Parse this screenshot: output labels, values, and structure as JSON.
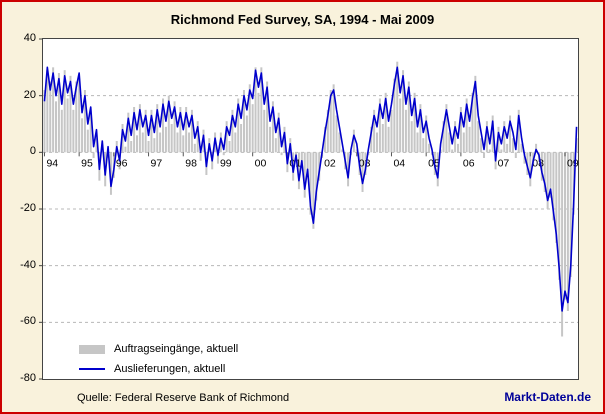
{
  "source": "Quelle: Federal Reserve Bank of Richmond",
  "brand": "Markt-Daten.de",
  "colors": {
    "frame_border": "#cc0000",
    "background": "#f9f2dc",
    "plot_background": "#ffffff",
    "gridline": "#b8b8b8",
    "bar_color": "#c6c6c6",
    "line_color": "#0000cc",
    "brand_color": "#000099"
  },
  "legend": [
    {
      "label": "Auftragseingänge, aktuell",
      "type": "bar",
      "color": "#c6c6c6"
    },
    {
      "label": "Auslieferungen, aktuell",
      "type": "line",
      "color": "#0000cc"
    }
  ],
  "chart_data": {
    "type": "bar",
    "title": "Richmond Fed Survey, SA, 1994 - Mai 2009",
    "xlabel": "",
    "ylabel": "",
    "ylim": [
      -80,
      40
    ],
    "yticks": [
      40,
      20,
      0,
      -20,
      -40,
      -60,
      -80
    ],
    "xtick_labels": [
      "94",
      "95",
      "96",
      "97",
      "98",
      "99",
      "00",
      "01",
      "02",
      "03",
      "04",
      "05",
      "06",
      "07",
      "08",
      "09"
    ],
    "x_start": "1994-01",
    "x_end": "2009-05",
    "grid": "dashed horizontal",
    "legend_position": "bottom-left inside plot",
    "series": [
      {
        "name": "Auftragseingänge, aktuell",
        "type": "bar",
        "color": "#c6c6c6",
        "values": [
          22,
          29,
          25,
          30,
          18,
          28,
          15,
          29,
          19,
          27,
          15,
          25,
          26,
          12,
          22,
          8,
          14,
          -2,
          6,
          -10,
          2,
          -12,
          -2,
          -15,
          -9,
          4,
          -6,
          10,
          2,
          14,
          4,
          16,
          6,
          17,
          7,
          15,
          4,
          15,
          5,
          17,
          7,
          19,
          9,
          20,
          10,
          18,
          7,
          16,
          6,
          16,
          7,
          15,
          3,
          11,
          -3,
          8,
          -8,
          5,
          -6,
          7,
          -4,
          7,
          -1,
          11,
          4,
          15,
          7,
          19,
          10,
          22,
          13,
          24,
          17,
          30,
          21,
          30,
          15,
          25,
          9,
          18,
          5,
          14,
          -1,
          9,
          -7,
          5,
          -10,
          -3,
          -13,
          -5,
          -16,
          -8,
          -22,
          -27,
          -17,
          -10,
          -2,
          9,
          15,
          22,
          24,
          13,
          7,
          1,
          -6,
          -12,
          -1,
          8,
          1,
          -8,
          -14,
          -8,
          -1,
          9,
          15,
          7,
          19,
          10,
          21,
          9,
          15,
          26,
          32,
          19,
          29,
          15,
          25,
          11,
          21,
          7,
          17,
          5,
          13,
          3,
          -1,
          -8,
          -12,
          1,
          11,
          17,
          7,
          1,
          11,
          3,
          16,
          7,
          19,
          9,
          21,
          27,
          11,
          5,
          -2,
          11,
          1,
          13,
          -6,
          9,
          1,
          11,
          3,
          13,
          5,
          -2,
          15,
          3,
          -4,
          -8,
          -12,
          -5,
          3,
          -3,
          -10,
          -14,
          -20,
          -16,
          -24,
          -32,
          -45,
          -65,
          -52,
          -56,
          -44,
          -22,
          5
        ]
      },
      {
        "name": "Auslieferungen, aktuell",
        "type": "line",
        "color": "#0000cc",
        "values": [
          18,
          30,
          22,
          28,
          20,
          26,
          17,
          27,
          21,
          25,
          17,
          23,
          28,
          14,
          20,
          10,
          16,
          2,
          8,
          -6,
          4,
          -8,
          2,
          -12,
          -6,
          2,
          -3,
          8,
          4,
          12,
          6,
          14,
          8,
          15,
          9,
          13,
          6,
          13,
          7,
          15,
          9,
          17,
          11,
          18,
          12,
          16,
          9,
          14,
          8,
          14,
          9,
          13,
          5,
          9,
          0,
          6,
          -5,
          3,
          -3,
          5,
          -1,
          5,
          1,
          9,
          6,
          13,
          9,
          17,
          12,
          20,
          15,
          22,
          19,
          29,
          23,
          28,
          17,
          23,
          11,
          16,
          7,
          12,
          2,
          7,
          -4,
          3,
          -7,
          -1,
          -10,
          -3,
          -13,
          -6,
          -19,
          -25,
          -14,
          -7,
          0,
          7,
          13,
          20,
          22,
          15,
          9,
          3,
          -3,
          -9,
          1,
          6,
          3,
          -5,
          -11,
          -6,
          1,
          7,
          13,
          9,
          17,
          12,
          19,
          11,
          17,
          24,
          30,
          21,
          27,
          17,
          23,
          13,
          19,
          9,
          15,
          7,
          11,
          5,
          1,
          -5,
          -9,
          3,
          9,
          15,
          9,
          3,
          9,
          5,
          14,
          9,
          17,
          11,
          19,
          25,
          13,
          7,
          1,
          9,
          3,
          11,
          -3,
          7,
          3,
          9,
          5,
          11,
          7,
          1,
          13,
          5,
          -1,
          -5,
          -9,
          -3,
          1,
          -1,
          -7,
          -11,
          -17,
          -13,
          -21,
          -29,
          -41,
          -56,
          -49,
          -53,
          -40,
          -18,
          9
        ]
      }
    ]
  }
}
